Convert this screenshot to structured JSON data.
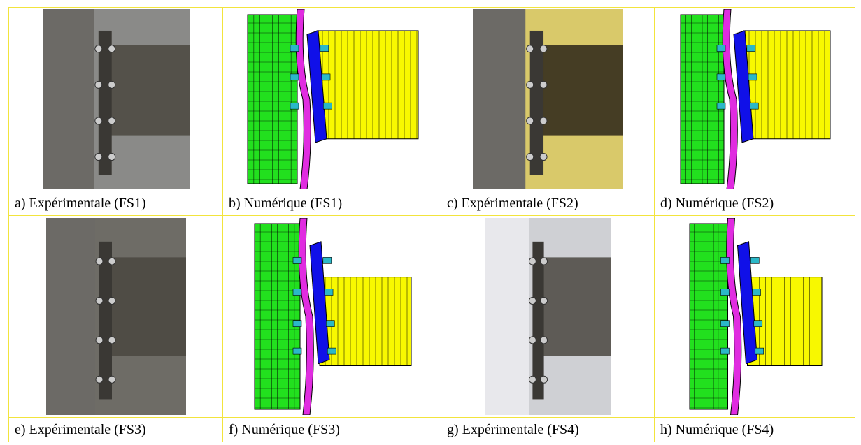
{
  "panels": [
    {
      "caption": "a) Expérimentale (FS1)"
    },
    {
      "caption": "b) Numérique (FS1)"
    },
    {
      "caption": "c) Expérimentale (FS2)"
    },
    {
      "caption": "d) Numérique (FS2)"
    },
    {
      "caption": "e) Expérimentale (FS3)"
    },
    {
      "caption": "f) Numérique (FS3)"
    },
    {
      "caption": "g) Expérimentale (FS4)"
    },
    {
      "caption": "h) Numérique (FS4)"
    }
  ]
}
